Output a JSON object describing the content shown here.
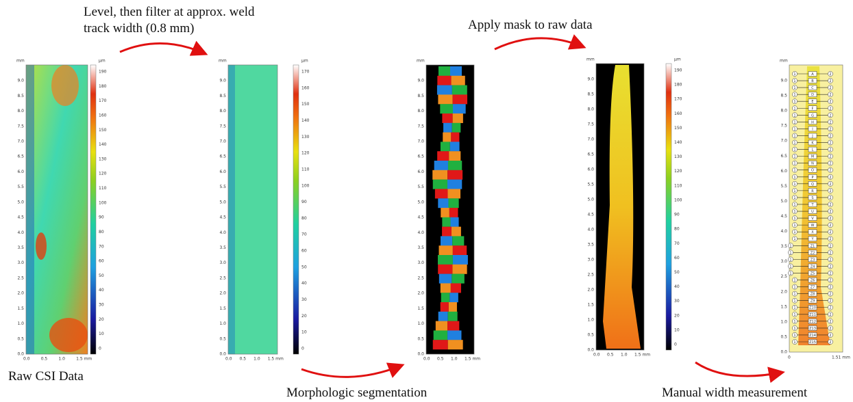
{
  "steps": {
    "level_filter": "Level, then filter at approx. weld track width (0.8 mm)",
    "apply_mask": "Apply mask to raw data"
  },
  "captions": [
    "Raw CSI Data",
    "Morphologic segmentation",
    "Manual width measurement"
  ],
  "axis": {
    "unit": "mm",
    "y_ticks": [
      "0.0",
      "0.5",
      "1.0",
      "1.5",
      "2.0",
      "2.5",
      "3.0",
      "3.5",
      "4.0",
      "4.5",
      "5.0",
      "5.5",
      "6.0",
      "6.5",
      "7.0",
      "7.5",
      "8.0",
      "8.5",
      "9.0"
    ],
    "x_ticks": [
      "0.0",
      "0.5",
      "1.0",
      "1.5 mm"
    ]
  },
  "colorbars": [
    {
      "unit": "µm",
      "ticks": [
        "0",
        "10",
        "20",
        "30",
        "40",
        "50",
        "60",
        "70",
        "80",
        "90",
        "100",
        "110",
        "120",
        "130",
        "140",
        "150",
        "160",
        "170",
        "180",
        "190"
      ]
    },
    {
      "unit": "µm",
      "ticks": [
        "0",
        "10",
        "20",
        "30",
        "40",
        "50",
        "60",
        "70",
        "80",
        "90",
        "100",
        "110",
        "120",
        "130",
        "140",
        "150",
        "160",
        "170"
      ]
    },
    {
      "unit": "µm",
      "ticks": [
        "0",
        "10",
        "20",
        "30",
        "40",
        "50",
        "60",
        "70",
        "80",
        "90",
        "100",
        "110",
        "120",
        "130",
        "140",
        "150",
        "160",
        "170",
        "180",
        "190"
      ]
    }
  ],
  "measurement": {
    "x_ticks": [
      "0",
      "1.51 mm"
    ],
    "left": "1",
    "right": "2",
    "labels": [
      "A",
      "B",
      "C",
      "D",
      "E",
      "F",
      "G",
      "H",
      "I",
      "J",
      "K",
      "L",
      "M",
      "N",
      "O",
      "P",
      "Q",
      "R",
      "S",
      "T",
      "U",
      "V",
      "W",
      "X",
      "Y",
      "Z1",
      "Z2",
      "Z3",
      "Z4",
      "Z5",
      "Z6",
      "Z7",
      "Z8",
      "Z9",
      "Z10",
      "Z11",
      "Z12",
      "Z13",
      "Z14",
      "Z15"
    ]
  }
}
